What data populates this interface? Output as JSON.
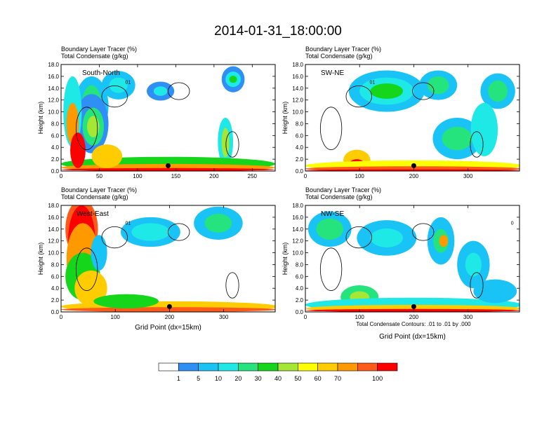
{
  "figure": {
    "title": "2014-01-31_18:00:00",
    "x_axis_label": "Grid Point (dx=15km)",
    "contour_note": "Total Condensate Contours: .01 to .01 by .000"
  },
  "chart_data": [
    {
      "type": "heatmap",
      "panel": "South-North",
      "label": "South-North",
      "title_line1": "Boundary Layer Tracer   (%)",
      "title_line2": "Total Condensate   (g/kg)",
      "ylabel": "Height (km)",
      "xlabel": "",
      "xlim": [
        0,
        280
      ],
      "ylim": [
        0,
        18
      ],
      "x_ticks": [
        0,
        50,
        100,
        150,
        200,
        250
      ],
      "y_ticks": [
        "0.0",
        "2.0",
        "4.0",
        "6.0",
        "8.0",
        "10.0",
        "12.0",
        "14.0",
        "16.0",
        "18.0"
      ],
      "marker_x": 140,
      "contour_label": "01"
    },
    {
      "type": "heatmap",
      "panel": "SW-NE",
      "label": "SW-NE",
      "title_line1": "Boundary Layer Tracer   (%)",
      "title_line2": "Total Condensate   (g/kg)",
      "ylabel": "Height (km)",
      "xlabel": "",
      "xlim": [
        0,
        395
      ],
      "ylim": [
        0,
        18
      ],
      "x_ticks": [
        0,
        100,
        200,
        300
      ],
      "y_ticks": [
        "0.0",
        "2.0",
        "4.0",
        "6.0",
        "8.0",
        "10.0",
        "12.0",
        "14.0",
        "16.0",
        "18.0"
      ],
      "marker_x": 200,
      "contour_label": "01"
    },
    {
      "type": "heatmap",
      "panel": "West-East",
      "label": "West-East",
      "title_line1": "Boundary Layer Tracer   (%)",
      "title_line2": "Total Condensate   (g/kg)",
      "ylabel": "Height (km)",
      "xlabel": "Grid Point (dx=15km)",
      "xlim": [
        0,
        395
      ],
      "ylim": [
        0,
        18
      ],
      "x_ticks": [
        0,
        100,
        200,
        300
      ],
      "y_ticks": [
        "0.0",
        "2.0",
        "4.0",
        "6.0",
        "8.0",
        "10.0",
        "12.0",
        "14.0",
        "16.0",
        "18.0"
      ],
      "marker_x": 200,
      "contour_label": "01"
    },
    {
      "type": "heatmap",
      "panel": "NW-SE",
      "label": "NW-SE",
      "title_line1": "Boundary Layer Tracer   (%)",
      "title_line2": "Total Condensate   (g/kg)",
      "ylabel": "Height (km)",
      "xlabel": "Grid Point (dx=15km)",
      "xlim": [
        0,
        395
      ],
      "ylim": [
        0,
        18
      ],
      "x_ticks": [
        0,
        100,
        200,
        300
      ],
      "y_ticks": [
        "0.0",
        "2.0",
        "4.0",
        "6.0",
        "8.0",
        "10.0",
        "12.0",
        "14.0",
        "16.0",
        "18.0"
      ],
      "marker_x": 200,
      "contour_label": "0"
    }
  ],
  "colorbar": {
    "colors": [
      "#ffffff",
      "#2f8ff5",
      "#19c3f5",
      "#1fe9e6",
      "#25e37d",
      "#15d61a",
      "#a6e635",
      "#ffff00",
      "#ffcc00",
      "#ff9900",
      "#ff5a1a",
      "#ff0000"
    ],
    "labels": [
      "1",
      "5",
      "10",
      "20",
      "30",
      "40",
      "50",
      "60",
      "70",
      "100"
    ]
  }
}
